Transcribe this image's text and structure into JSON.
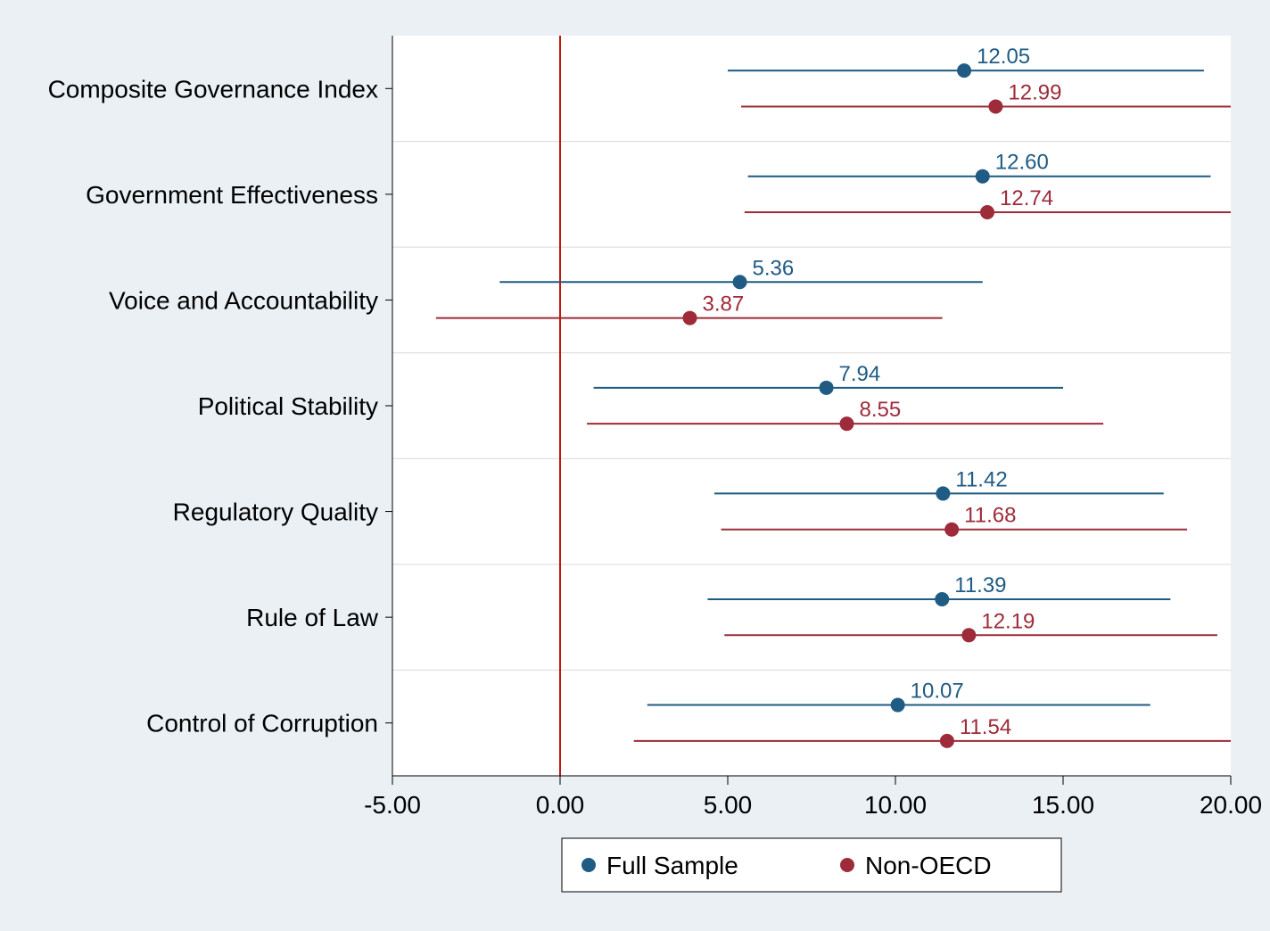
{
  "chart": {
    "type": "dot-whisker",
    "background_color": "#eaf0f4",
    "plot_background": "#ffffff",
    "reference_line": {
      "x": 0.0,
      "color": "#c21807",
      "width": 2
    },
    "x_axis": {
      "min": -5.0,
      "max": 20.0,
      "ticks": [
        -5.0,
        0.0,
        5.0,
        10.0,
        15.0,
        20.0
      ],
      "tick_format_decimals": 2,
      "fontsize": 28
    },
    "categories": [
      "Composite Governance Index",
      "Government Effectiveness",
      "Voice and Accountability",
      "Political Stability",
      "Regulatory Quality",
      "Rule of Law",
      "Control of Corruption"
    ],
    "series": [
      {
        "name": "Full Sample",
        "color": "#1f5b83",
        "marker_radius": 8,
        "line_width": 2,
        "points": [
          {
            "value": 12.05,
            "low": 5.0,
            "high": 19.2
          },
          {
            "value": 12.6,
            "low": 5.6,
            "high": 19.4
          },
          {
            "value": 5.36,
            "low": -1.8,
            "high": 12.6
          },
          {
            "value": 7.94,
            "low": 1.0,
            "high": 15.0
          },
          {
            "value": 11.42,
            "low": 4.6,
            "high": 18.0
          },
          {
            "value": 11.39,
            "low": 4.4,
            "high": 18.2
          },
          {
            "value": 10.07,
            "low": 2.6,
            "high": 17.6
          }
        ]
      },
      {
        "name": "Non-OECD",
        "color": "#9e2b3a",
        "marker_radius": 8,
        "line_width": 2,
        "points": [
          {
            "value": 12.99,
            "low": 5.4,
            "high": 20.3
          },
          {
            "value": 12.74,
            "low": 5.5,
            "high": 20.0
          },
          {
            "value": 3.87,
            "low": -3.7,
            "high": 11.4
          },
          {
            "value": 8.55,
            "low": 0.8,
            "high": 16.2
          },
          {
            "value": 11.68,
            "low": 4.8,
            "high": 18.7
          },
          {
            "value": 12.19,
            "low": 4.9,
            "high": 19.6
          },
          {
            "value": 11.54,
            "low": 2.2,
            "high": 20.8
          }
        ]
      }
    ],
    "legend": {
      "items": [
        "Full Sample",
        "Non-OECD"
      ]
    }
  }
}
